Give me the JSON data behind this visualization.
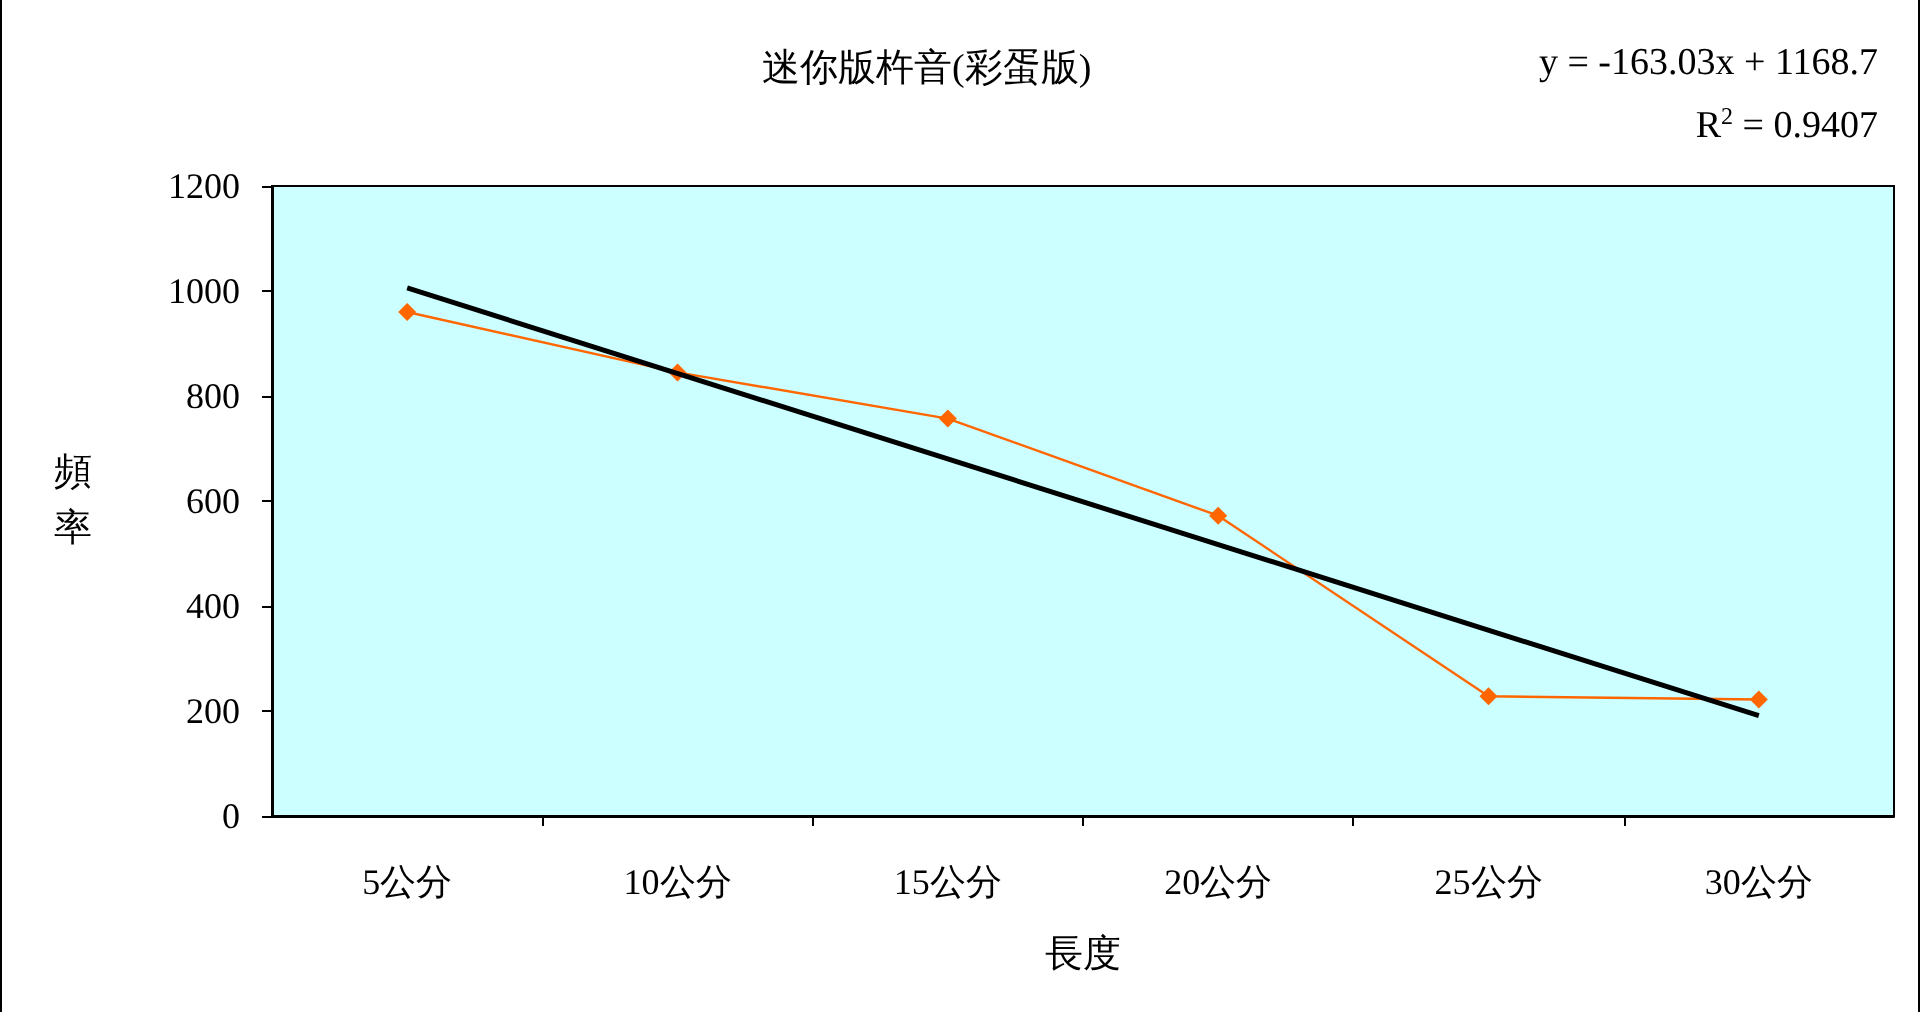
{
  "chart_data": {
    "type": "line",
    "title": "迷你版杵音(彩蛋版)",
    "xlabel": "長度",
    "ylabel": "頻率",
    "categories": [
      "5公分",
      "10公分",
      "15公分",
      "20公分",
      "25公分",
      "30公分"
    ],
    "series": [
      {
        "color": "#ff6600",
        "values": [
          960,
          845,
          757,
          572,
          228,
          222
        ],
        "marker": "diamond"
      },
      {
        "type": "line",
        "color": "#000000",
        "x": [
          "5公分",
          "30公分"
        ],
        "values": [
          1006,
          191
        ],
        "marker": "none"
      }
    ],
    "annotations": [
      "y = -163.03x + 1168.7",
      "R$^{2}$ = 0.9407"
    ],
    "ylim": [
      0,
      1200
    ],
    "yticks": [
      0,
      200,
      400,
      600,
      800,
      1000,
      1200
    ],
    "grid": false
  }
}
